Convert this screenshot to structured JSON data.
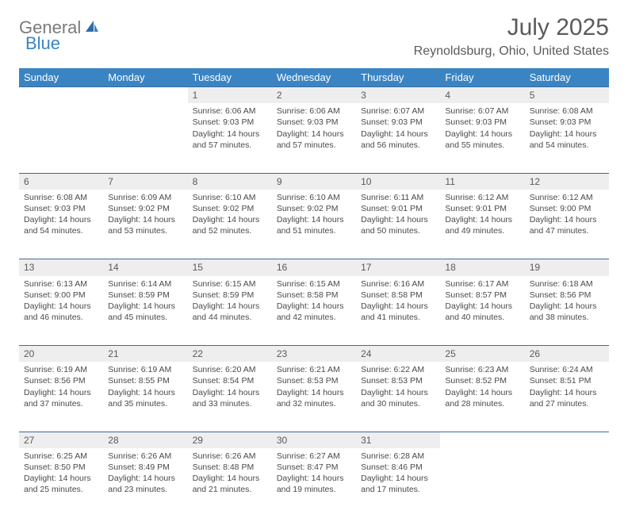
{
  "logo": {
    "part1": "General",
    "part2": "Blue"
  },
  "title": "July 2025",
  "location": "Reynoldsburg, Ohio, United States",
  "colors": {
    "header_bg": "#3a84c4",
    "header_fg": "#ffffff",
    "daynum_bg": "#eeeeee",
    "border": "#3a6a9a",
    "text": "#4a4a4a",
    "logo_gray": "#7a7a7a",
    "logo_blue": "#3a84c4"
  },
  "daynames": [
    "Sunday",
    "Monday",
    "Tuesday",
    "Wednesday",
    "Thursday",
    "Friday",
    "Saturday"
  ],
  "weeks": [
    [
      null,
      null,
      {
        "n": "1",
        "sr": "6:06 AM",
        "ss": "9:03 PM",
        "dl": "14 hours and 57 minutes."
      },
      {
        "n": "2",
        "sr": "6:06 AM",
        "ss": "9:03 PM",
        "dl": "14 hours and 57 minutes."
      },
      {
        "n": "3",
        "sr": "6:07 AM",
        "ss": "9:03 PM",
        "dl": "14 hours and 56 minutes."
      },
      {
        "n": "4",
        "sr": "6:07 AM",
        "ss": "9:03 PM",
        "dl": "14 hours and 55 minutes."
      },
      {
        "n": "5",
        "sr": "6:08 AM",
        "ss": "9:03 PM",
        "dl": "14 hours and 54 minutes."
      }
    ],
    [
      {
        "n": "6",
        "sr": "6:08 AM",
        "ss": "9:03 PM",
        "dl": "14 hours and 54 minutes."
      },
      {
        "n": "7",
        "sr": "6:09 AM",
        "ss": "9:02 PM",
        "dl": "14 hours and 53 minutes."
      },
      {
        "n": "8",
        "sr": "6:10 AM",
        "ss": "9:02 PM",
        "dl": "14 hours and 52 minutes."
      },
      {
        "n": "9",
        "sr": "6:10 AM",
        "ss": "9:02 PM",
        "dl": "14 hours and 51 minutes."
      },
      {
        "n": "10",
        "sr": "6:11 AM",
        "ss": "9:01 PM",
        "dl": "14 hours and 50 minutes."
      },
      {
        "n": "11",
        "sr": "6:12 AM",
        "ss": "9:01 PM",
        "dl": "14 hours and 49 minutes."
      },
      {
        "n": "12",
        "sr": "6:12 AM",
        "ss": "9:00 PM",
        "dl": "14 hours and 47 minutes."
      }
    ],
    [
      {
        "n": "13",
        "sr": "6:13 AM",
        "ss": "9:00 PM",
        "dl": "14 hours and 46 minutes."
      },
      {
        "n": "14",
        "sr": "6:14 AM",
        "ss": "8:59 PM",
        "dl": "14 hours and 45 minutes."
      },
      {
        "n": "15",
        "sr": "6:15 AM",
        "ss": "8:59 PM",
        "dl": "14 hours and 44 minutes."
      },
      {
        "n": "16",
        "sr": "6:15 AM",
        "ss": "8:58 PM",
        "dl": "14 hours and 42 minutes."
      },
      {
        "n": "17",
        "sr": "6:16 AM",
        "ss": "8:58 PM",
        "dl": "14 hours and 41 minutes."
      },
      {
        "n": "18",
        "sr": "6:17 AM",
        "ss": "8:57 PM",
        "dl": "14 hours and 40 minutes."
      },
      {
        "n": "19",
        "sr": "6:18 AM",
        "ss": "8:56 PM",
        "dl": "14 hours and 38 minutes."
      }
    ],
    [
      {
        "n": "20",
        "sr": "6:19 AM",
        "ss": "8:56 PM",
        "dl": "14 hours and 37 minutes."
      },
      {
        "n": "21",
        "sr": "6:19 AM",
        "ss": "8:55 PM",
        "dl": "14 hours and 35 minutes."
      },
      {
        "n": "22",
        "sr": "6:20 AM",
        "ss": "8:54 PM",
        "dl": "14 hours and 33 minutes."
      },
      {
        "n": "23",
        "sr": "6:21 AM",
        "ss": "8:53 PM",
        "dl": "14 hours and 32 minutes."
      },
      {
        "n": "24",
        "sr": "6:22 AM",
        "ss": "8:53 PM",
        "dl": "14 hours and 30 minutes."
      },
      {
        "n": "25",
        "sr": "6:23 AM",
        "ss": "8:52 PM",
        "dl": "14 hours and 28 minutes."
      },
      {
        "n": "26",
        "sr": "6:24 AM",
        "ss": "8:51 PM",
        "dl": "14 hours and 27 minutes."
      }
    ],
    [
      {
        "n": "27",
        "sr": "6:25 AM",
        "ss": "8:50 PM",
        "dl": "14 hours and 25 minutes."
      },
      {
        "n": "28",
        "sr": "6:26 AM",
        "ss": "8:49 PM",
        "dl": "14 hours and 23 minutes."
      },
      {
        "n": "29",
        "sr": "6:26 AM",
        "ss": "8:48 PM",
        "dl": "14 hours and 21 minutes."
      },
      {
        "n": "30",
        "sr": "6:27 AM",
        "ss": "8:47 PM",
        "dl": "14 hours and 19 minutes."
      },
      {
        "n": "31",
        "sr": "6:28 AM",
        "ss": "8:46 PM",
        "dl": "14 hours and 17 minutes."
      },
      null,
      null
    ]
  ],
  "labels": {
    "sunrise": "Sunrise:",
    "sunset": "Sunset:",
    "daylight": "Daylight:"
  }
}
